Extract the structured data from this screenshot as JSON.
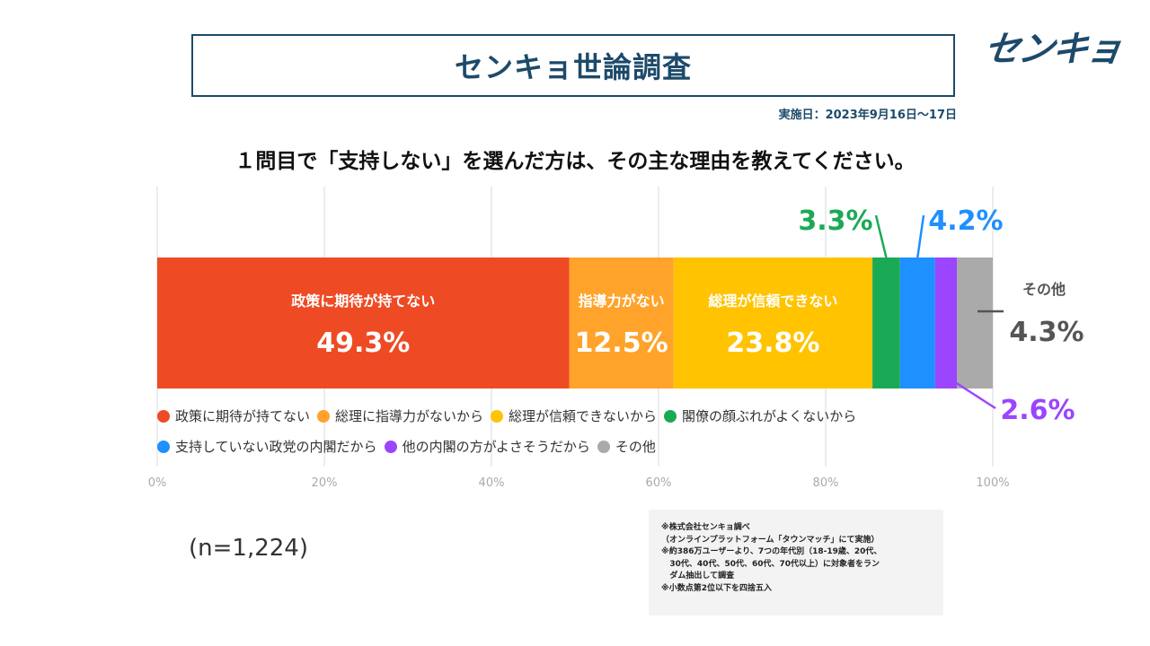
{
  "header": {
    "title": "センキョ世論調査",
    "logo": "センキョ",
    "date": "実施日：2023年9月16日〜17日",
    "question": "１問目で「支持しない」を選んだ方は、その主な理由を教えてください。"
  },
  "chart_data": {
    "type": "bar",
    "orientation": "horizontal-stacked",
    "title": "",
    "xlim": [
      0,
      100
    ],
    "grid": true,
    "x_ticks": [
      "0%",
      "20%",
      "40%",
      "60%",
      "80%",
      "100%"
    ],
    "series": [
      {
        "name": "政策に期待が持てない",
        "bar_label": "政策に期待が持てない",
        "value": 49.3,
        "label": "49.3%",
        "color": "#ee4b24"
      },
      {
        "name": "総理に指導力がないから",
        "bar_label": "指導力がない",
        "value": 12.5,
        "label": "12.5%",
        "color": "#ffa32a"
      },
      {
        "name": "総理が信頼できないから",
        "bar_label": "総理が信頼できない",
        "value": 23.8,
        "label": "23.8%",
        "color": "#ffc300"
      },
      {
        "name": "閣僚の顔ぶれがよくないから",
        "bar_label": "",
        "value": 3.3,
        "label": "3.3%",
        "color": "#1aaa55"
      },
      {
        "name": "支持していない政党の内閣だから",
        "bar_label": "",
        "value": 4.2,
        "label": "4.2%",
        "color": "#1e90ff"
      },
      {
        "name": "他の内閣の方がよさそうだから",
        "bar_label": "",
        "value": 2.6,
        "label": "2.6%",
        "color": "#9b45ff"
      },
      {
        "name": "その他",
        "bar_label": "その他",
        "value": 4.3,
        "label": "4.3%",
        "color": "#aaaaaa"
      }
    ],
    "legend_position": "bottom"
  },
  "sample": "(n=1,224)",
  "notes": [
    "※株式会社センキョ調べ",
    "（オンラインプラットフォーム「タウンマッチ」にて実施）",
    "※約386万ユーザーより、7つの年代別（18-19歳、20代、",
    "   30代、40代、50代、60代、70代以上）に対象者をラン",
    "   ダム抽出して調査",
    "※小数点第2位以下を四捨五入"
  ],
  "colors": {
    "brand": "#1d4a6a",
    "grid": "#d9d9d9",
    "other_label": "#555555"
  }
}
